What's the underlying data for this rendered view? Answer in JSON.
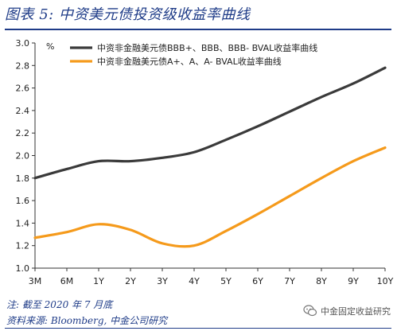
{
  "title": "图表 5:  中资美元债投资级收益率曲线",
  "notes": {
    "note": "注:  截至 2020 年 7 月底",
    "source": "资料来源:  Bloomberg,  中金公司研究"
  },
  "watermark": {
    "text": "中金固定收益研究",
    "icon": "wechat-icon"
  },
  "chart_data": {
    "type": "line",
    "unit": "%",
    "categories": [
      "3M",
      "6M",
      "1Y",
      "2Y",
      "3Y",
      "4Y",
      "5Y",
      "6Y",
      "7Y",
      "8Y",
      "9Y",
      "10Y"
    ],
    "ylim": [
      1.0,
      3.0
    ],
    "yticks": [
      "1.0",
      "1.2",
      "1.4",
      "1.6",
      "1.8",
      "2.0",
      "2.2",
      "2.4",
      "2.6",
      "2.8",
      "3.0"
    ],
    "grid": false,
    "legend_position": "top-left",
    "series": [
      {
        "name": "中资非金融美元债BBB+、BBB、BBB- BVAL收益率曲线",
        "color": "#3a3a3a",
        "values": [
          1.8,
          1.88,
          1.95,
          1.95,
          1.98,
          2.03,
          2.14,
          2.26,
          2.39,
          2.52,
          2.64,
          2.78
        ]
      },
      {
        "name": "中资非金融美元债A+、A、A- BVAL收益率曲线",
        "color": "#f59a1b",
        "values": [
          1.27,
          1.32,
          1.39,
          1.34,
          1.22,
          1.2,
          1.33,
          1.48,
          1.64,
          1.8,
          1.95,
          2.07
        ]
      }
    ]
  }
}
